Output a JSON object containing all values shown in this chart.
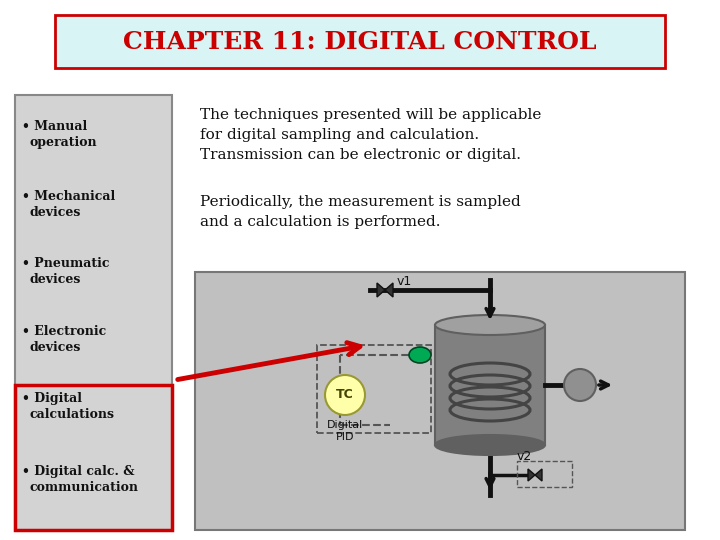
{
  "title": "CHAPTER 11: DIGITAL CONTROL",
  "title_color": "#cc0000",
  "title_bg": "#d8f4f4",
  "title_border": "#cc0000",
  "bg_color": "#ffffff",
  "left_panel_bg": "#d3d3d3",
  "left_panel_border": "#888888",
  "bullet_items": [
    "Manual\noperation",
    "Mechanical\ndevices",
    "Pneumatic\ndevices",
    "Electronic\ndevices",
    "Digital\ncalculations",
    "Digital calc. &\ncommunication"
  ],
  "highlight_index": 4,
  "highlight_border": "#cc0000",
  "text1_lines": [
    "The techniques presented will be applicable",
    "for digital sampling and calculation.",
    "Transmission can be electronic or digital."
  ],
  "text2_lines": [
    "Periodically, the measurement is sampled",
    "and a calculation is performed."
  ],
  "diagram_bg": "#c0c0c0",
  "diagram_border": "#777777",
  "tank_color": "#808080",
  "tank_dark": "#606060",
  "tank_top": "#a0a0a0",
  "coil_color": "#444444",
  "pump_color": "#909090",
  "green_dot": "#00aa55",
  "tc_bg": "#ffffaa",
  "tc_border": "#999933",
  "pipe_color": "#111111",
  "valve_color": "#333333",
  "arrow_color": "#cc0000",
  "dashed_color": "#555555"
}
